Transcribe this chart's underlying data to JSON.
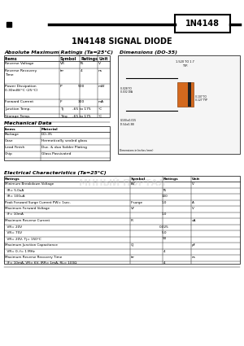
{
  "title": "1N4148 SIGNAL DIODE",
  "part_number": "1N4148",
  "bg_color": "#ffffff",
  "abs_max_title": "Absolute Maximum Ratings (Ta=25°C)",
  "abs_max_headers": [
    "Items",
    "Symbol",
    "Ratings",
    "Unit"
  ],
  "abs_max_rows": [
    [
      "Reverse Voltage",
      "VR",
      "75",
      "V"
    ],
    [
      "Reverse Recovery\nTime",
      "trr",
      "4",
      "ns"
    ],
    [
      "Power Dissipation\n0.30mW/°C (25°C)",
      "P",
      "500",
      "mW"
    ],
    [
      "Forward Current",
      "IF",
      "300",
      "mA"
    ],
    [
      "Junction Temp.",
      "Tj",
      "-65 to 175",
      "°C"
    ],
    [
      "Storage Temp.",
      "Tstg",
      "-65 to 175",
      "°C"
    ]
  ],
  "mech_title": "Mechanical Data",
  "mech_headers": [
    "Items",
    "Material"
  ],
  "mech_rows": [
    [
      "Items",
      "Material"
    ],
    [
      "Package",
      "DO-35"
    ],
    [
      "Case",
      "Hermetically sealed glass"
    ],
    [
      "Lead Finish",
      "Duc. & duo Solder Plating"
    ],
    [
      "Chip",
      "Glass Passivated"
    ]
  ],
  "dim_title": "Dimensions (DO-35)",
  "elec_title": "Electrical Characteristics (Ta=25°C)",
  "elec_headers": [
    "Ratings",
    "Symbol",
    "Ratings",
    "Unit"
  ],
  "elec_rows": [
    [
      "Minimum Breakdown Voltage",
      "BV",
      "",
      "V"
    ],
    [
      "  IR= 5.0uA",
      "",
      "75",
      ""
    ],
    [
      "  IR= 100uA",
      "",
      "100",
      ""
    ],
    [
      "Peak Forward Surge Current PW= 1sec.",
      "IFsurge",
      "1.0",
      "A"
    ],
    [
      "Maximum Forward Voltage",
      "VF",
      "",
      "V"
    ],
    [
      "  IF= 10mA",
      "",
      "1.0",
      ""
    ],
    [
      "Maximum Reverse Current",
      "IR",
      "",
      "uA"
    ],
    [
      "  VR= 20V",
      "",
      "0.025",
      ""
    ],
    [
      "  VR= 75V",
      "",
      "5.0",
      ""
    ],
    [
      "  VR= 20V, Tj= 150°C",
      "",
      "50",
      ""
    ],
    [
      "Maximum Junction Capacitance",
      "CJ",
      "",
      "pF"
    ],
    [
      "  VR= 0, f= 1 MHz",
      "",
      "4",
      ""
    ],
    [
      "Maximum Reverse Recovery Time",
      "trr",
      "",
      "ns"
    ],
    [
      "  IF= 10mA, VR= 6V, IRR= 1mA, RL= 100Ω",
      "",
      "4",
      ""
    ]
  ]
}
